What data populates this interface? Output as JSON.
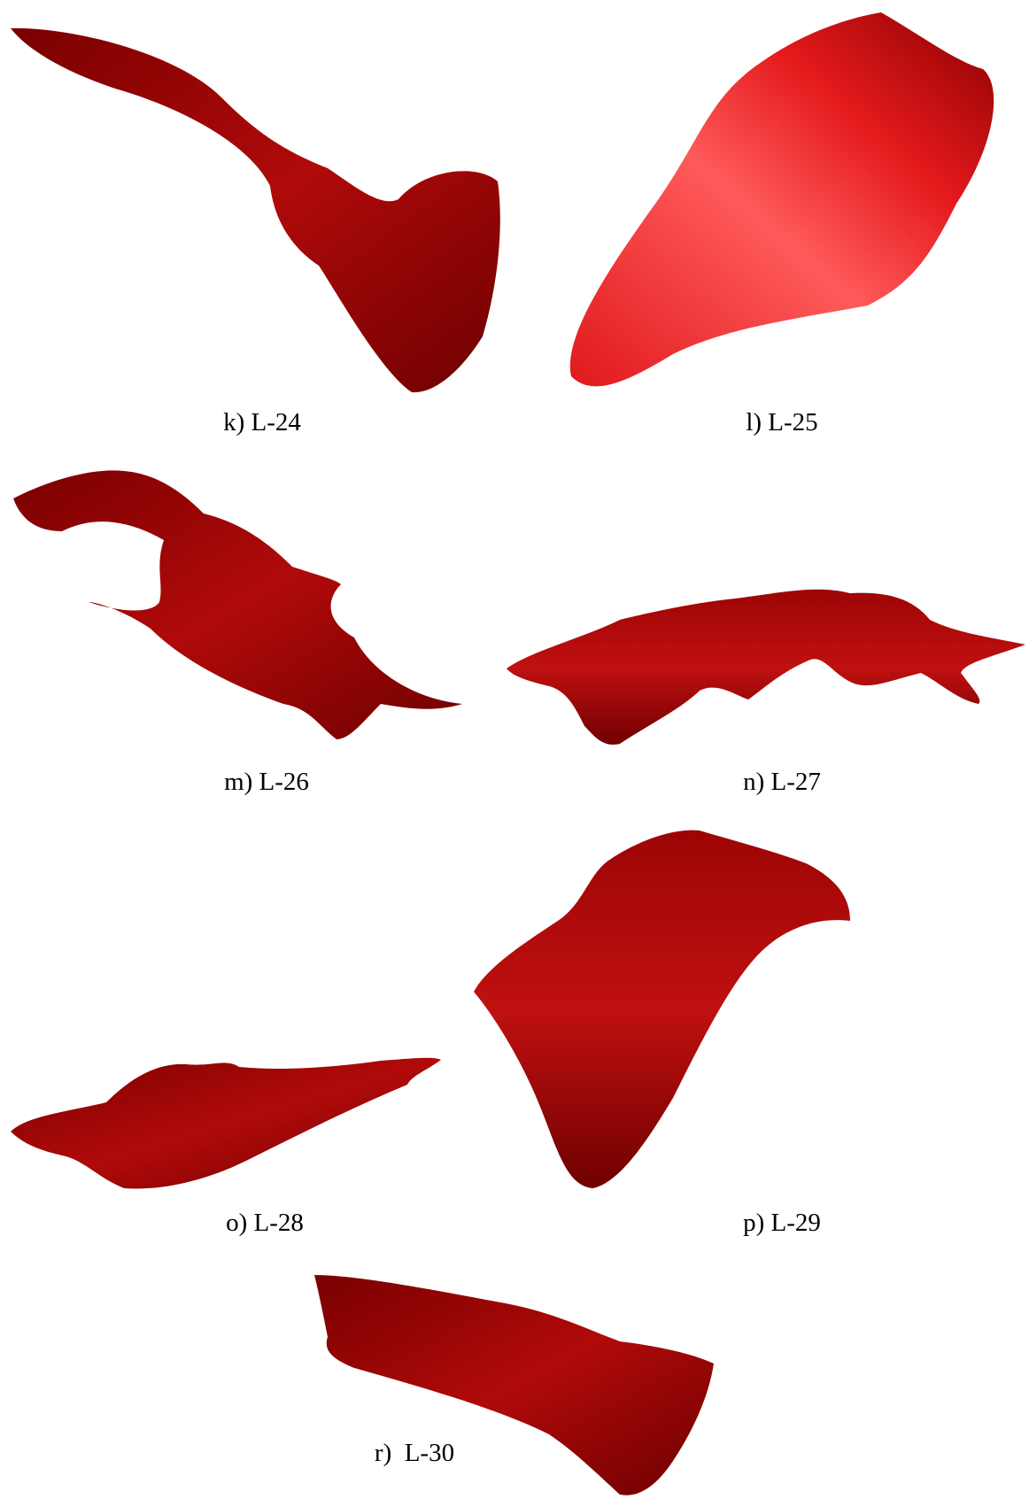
{
  "figure": {
    "captions": [
      "k) L-24",
      "l) L-25",
      "m) L-26",
      "n) L-27",
      "o) L-28",
      "p) L-29",
      "r)  L-30"
    ]
  }
}
